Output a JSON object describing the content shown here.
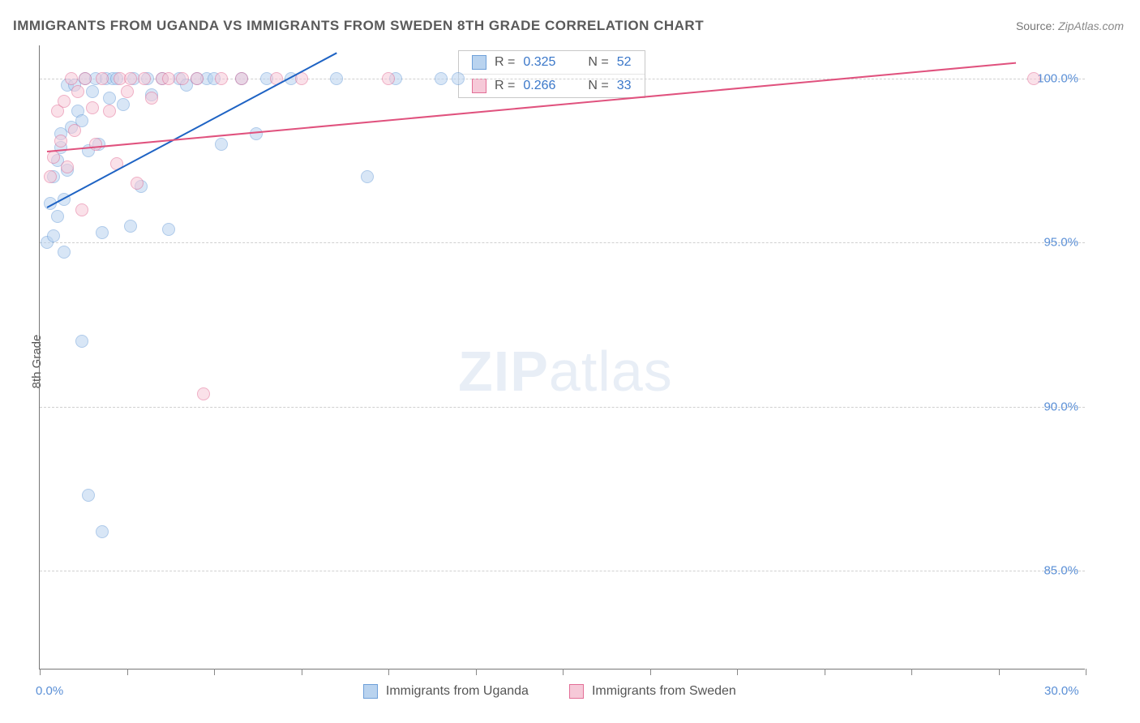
{
  "title": "IMMIGRANTS FROM UGANDA VS IMMIGRANTS FROM SWEDEN 8TH GRADE CORRELATION CHART",
  "source": {
    "label": "Source:",
    "name": "ZipAtlas.com"
  },
  "ylabel": "8th Grade",
  "watermark": {
    "zip": "ZIP",
    "rest": "atlas"
  },
  "chart": {
    "type": "scatter",
    "background_color": "#ffffff",
    "grid_color": "#d0d0d0",
    "xlim": [
      0,
      30
    ],
    "ylim": [
      82,
      101
    ],
    "xtick_positions": [
      0,
      2.5,
      5.0,
      7.5,
      10.0,
      12.5,
      15.0,
      17.5,
      20.0,
      22.5,
      25.0,
      27.5,
      30.0
    ],
    "xtick_labels": {
      "left": "0.0%",
      "right": "30.0%"
    },
    "ytick_positions": [
      85,
      90,
      95,
      100
    ],
    "ytick_labels": [
      "85.0%",
      "90.0%",
      "95.0%",
      "100.0%"
    ],
    "marker_radius": 8,
    "marker_stroke_width": 1.5,
    "series": [
      {
        "name": "Immigrants from Uganda",
        "fill": "#b9d3ef",
        "stroke": "#6ea0d9",
        "fill_opacity": 0.55,
        "trend": {
          "color": "#1e63c4",
          "x1": 0.2,
          "y1": 96.1,
          "x2": 8.5,
          "y2": 100.8
        },
        "legend": {
          "R": "0.325",
          "N": "52"
        },
        "points": [
          [
            0.2,
            95.0
          ],
          [
            0.3,
            96.2
          ],
          [
            0.4,
            97.0
          ],
          [
            0.5,
            97.5
          ],
          [
            0.6,
            97.9
          ],
          [
            0.6,
            98.3
          ],
          [
            0.7,
            96.3
          ],
          [
            0.8,
            97.2
          ],
          [
            0.8,
            99.8
          ],
          [
            0.9,
            98.5
          ],
          [
            1.0,
            99.8
          ],
          [
            1.1,
            99.0
          ],
          [
            1.2,
            98.7
          ],
          [
            1.3,
            100.0
          ],
          [
            1.4,
            97.8
          ],
          [
            1.5,
            99.6
          ],
          [
            1.6,
            100.0
          ],
          [
            1.7,
            98.0
          ],
          [
            1.8,
            95.3
          ],
          [
            1.9,
            100.0
          ],
          [
            2.0,
            99.4
          ],
          [
            2.1,
            100.0
          ],
          [
            2.2,
            100.0
          ],
          [
            2.4,
            99.2
          ],
          [
            2.6,
            95.5
          ],
          [
            2.7,
            100.0
          ],
          [
            2.9,
            96.7
          ],
          [
            3.1,
            100.0
          ],
          [
            3.2,
            99.5
          ],
          [
            3.5,
            100.0
          ],
          [
            3.7,
            95.4
          ],
          [
            4.0,
            100.0
          ],
          [
            4.2,
            99.8
          ],
          [
            4.5,
            100.0
          ],
          [
            4.8,
            100.0
          ],
          [
            5.0,
            100.0
          ],
          [
            5.2,
            98.0
          ],
          [
            5.8,
            100.0
          ],
          [
            6.2,
            98.3
          ],
          [
            6.5,
            100.0
          ],
          [
            7.2,
            100.0
          ],
          [
            8.5,
            100.0
          ],
          [
            9.4,
            97.0
          ],
          [
            10.2,
            100.0
          ],
          [
            11.5,
            100.0
          ],
          [
            12.0,
            100.0
          ],
          [
            0.7,
            94.7
          ],
          [
            1.2,
            92.0
          ],
          [
            1.4,
            87.3
          ],
          [
            1.8,
            86.2
          ],
          [
            0.4,
            95.2
          ],
          [
            0.5,
            95.8
          ]
        ]
      },
      {
        "name": "Immigrants from Sweden",
        "fill": "#f6c9d8",
        "stroke": "#e36f97",
        "fill_opacity": 0.55,
        "trend": {
          "color": "#e0527e",
          "x1": 0.2,
          "y1": 97.8,
          "x2": 28.0,
          "y2": 100.5
        },
        "legend": {
          "R": "0.266",
          "N": "33"
        },
        "points": [
          [
            0.3,
            97.0
          ],
          [
            0.4,
            97.6
          ],
          [
            0.5,
            99.0
          ],
          [
            0.6,
            98.1
          ],
          [
            0.7,
            99.3
          ],
          [
            0.8,
            97.3
          ],
          [
            0.9,
            100.0
          ],
          [
            1.0,
            98.4
          ],
          [
            1.1,
            99.6
          ],
          [
            1.2,
            96.0
          ],
          [
            1.3,
            100.0
          ],
          [
            1.5,
            99.1
          ],
          [
            1.6,
            98.0
          ],
          [
            1.8,
            100.0
          ],
          [
            2.0,
            99.0
          ],
          [
            2.2,
            97.4
          ],
          [
            2.3,
            100.0
          ],
          [
            2.5,
            99.6
          ],
          [
            2.6,
            100.0
          ],
          [
            2.8,
            96.8
          ],
          [
            3.0,
            100.0
          ],
          [
            3.2,
            99.4
          ],
          [
            3.5,
            100.0
          ],
          [
            3.7,
            100.0
          ],
          [
            4.1,
            100.0
          ],
          [
            4.5,
            100.0
          ],
          [
            5.2,
            100.0
          ],
          [
            5.8,
            100.0
          ],
          [
            6.8,
            100.0
          ],
          [
            7.5,
            100.0
          ],
          [
            10.0,
            100.0
          ],
          [
            4.7,
            90.4
          ],
          [
            28.5,
            100.0
          ]
        ]
      }
    ]
  },
  "legend_top": {
    "R_label": "R =",
    "N_label": "N ="
  },
  "bottom_legend_label_a": "Immigrants from Uganda",
  "bottom_legend_label_b": "Immigrants from Sweden"
}
